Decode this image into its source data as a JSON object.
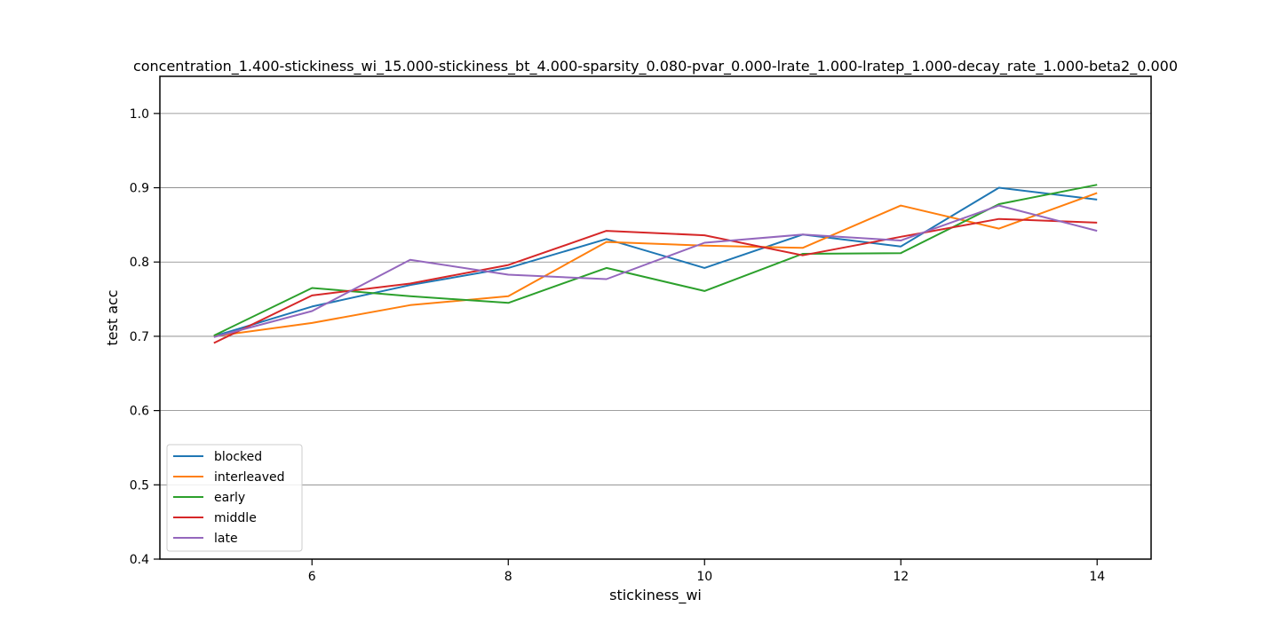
{
  "chart_data": {
    "type": "line",
    "title": "concentration_1.400-stickiness_wi_15.000-stickiness_bt_4.000-sparsity_0.080-pvar_0.000-lrate_1.000-lratep_1.000-decay_rate_1.000-beta2_0.000",
    "xlabel": "stickiness_wi",
    "ylabel": "test acc",
    "xlim": [
      4.45,
      14.55
    ],
    "ylim": [
      0.4,
      1.05
    ],
    "xticks": [
      6,
      8,
      10,
      12,
      14
    ],
    "xtick_labels": [
      "6",
      "8",
      "10",
      "12",
      "14"
    ],
    "yticks": [
      0.4,
      0.5,
      0.6,
      0.7,
      0.8,
      0.9,
      1.0
    ],
    "ytick_labels": [
      "0.4",
      "0.5",
      "0.6",
      "0.7",
      "0.8",
      "0.9",
      "1.0"
    ],
    "grid": "horizontal",
    "legend_position": "lower-left",
    "x": [
      5,
      6,
      7,
      8,
      9,
      10,
      11,
      12,
      13,
      14
    ],
    "series": [
      {
        "name": "blocked",
        "color": "#1f77b4",
        "values": [
          0.7,
          0.74,
          0.769,
          0.792,
          0.831,
          0.792,
          0.837,
          0.821,
          0.9,
          0.884
        ]
      },
      {
        "name": "interleaved",
        "color": "#ff7f0e",
        "values": [
          0.7,
          0.718,
          0.742,
          0.754,
          0.827,
          0.822,
          0.819,
          0.876,
          0.845,
          0.893
        ]
      },
      {
        "name": "early",
        "color": "#2ca02c",
        "values": [
          0.701,
          0.765,
          0.754,
          0.745,
          0.792,
          0.761,
          0.811,
          0.812,
          0.878,
          0.904
        ]
      },
      {
        "name": "middle",
        "color": "#d62728",
        "values": [
          0.691,
          0.755,
          0.771,
          0.796,
          0.842,
          0.836,
          0.809,
          0.834,
          0.858,
          0.853
        ]
      },
      {
        "name": "late",
        "color": "#9467bd",
        "values": [
          0.699,
          0.734,
          0.803,
          0.783,
          0.777,
          0.826,
          0.837,
          0.829,
          0.876,
          0.842
        ]
      }
    ]
  }
}
